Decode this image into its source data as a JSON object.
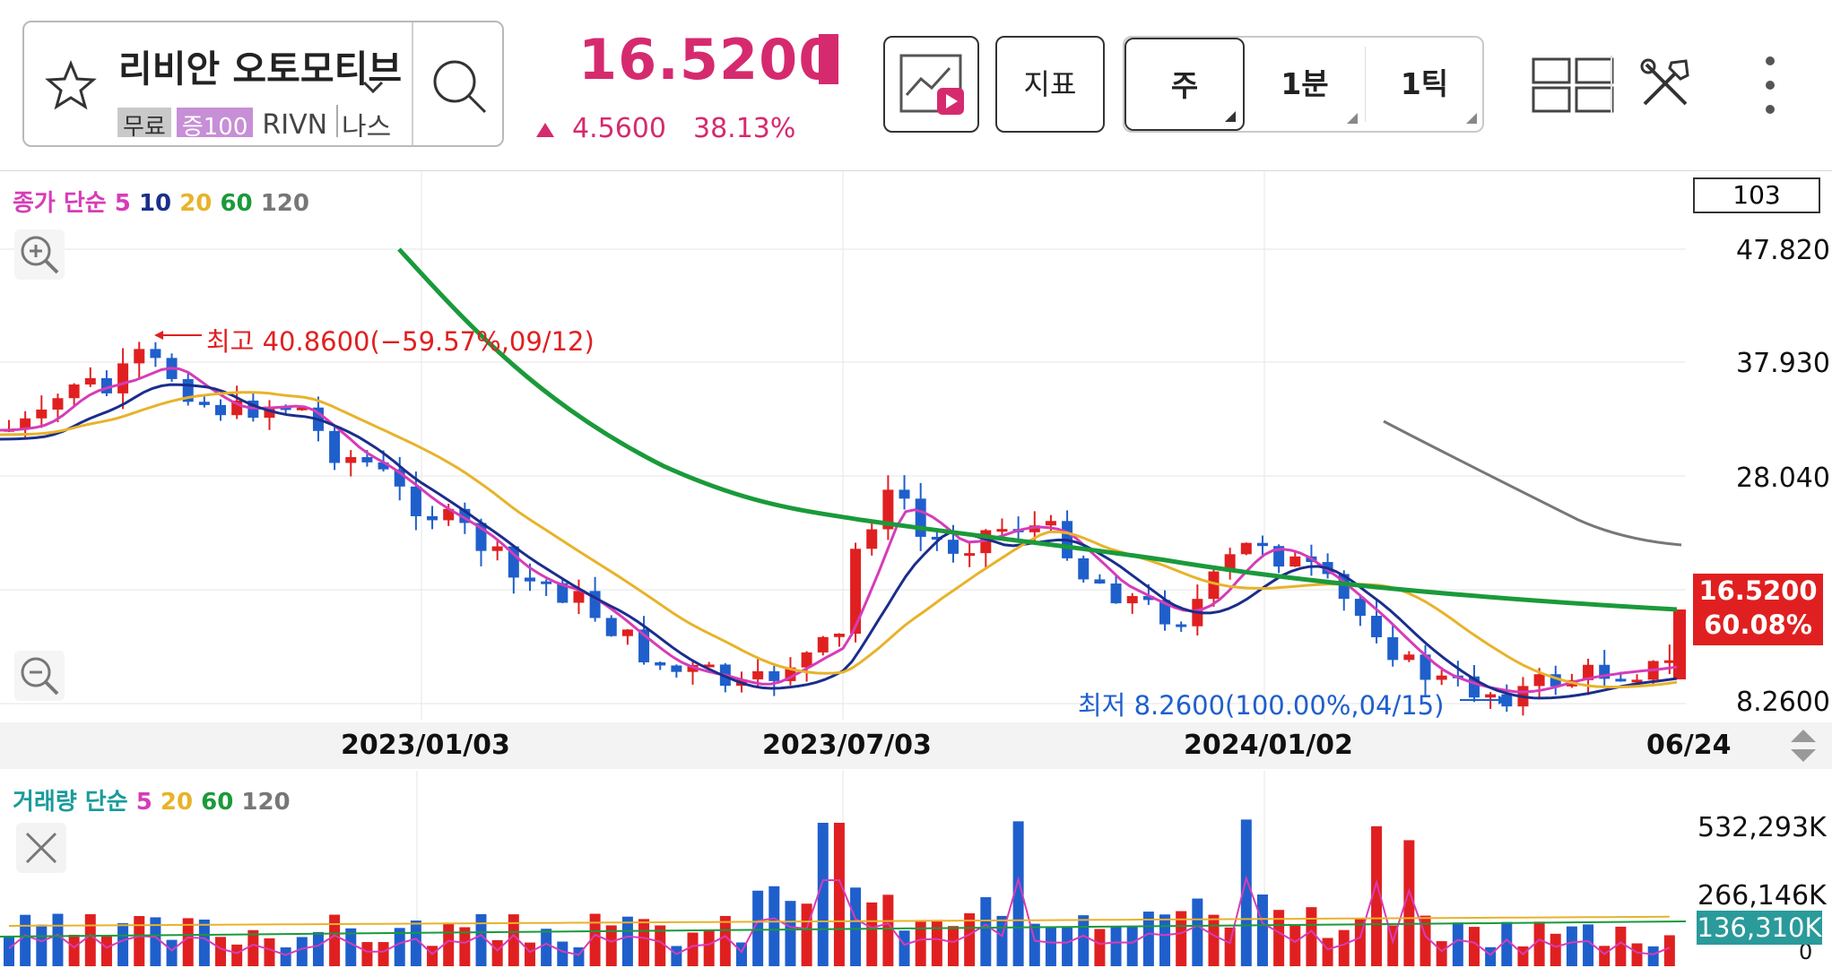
{
  "stock": {
    "name": "리비안 오토모티브",
    "tags": {
      "free": "무료",
      "margin": "증100",
      "ticker": "RIVN",
      "market": "나스"
    },
    "price": "16.5200",
    "change": "4.5600",
    "change_pct": "38.13%"
  },
  "toolbar": {
    "indicator_label": "지표",
    "periods": [
      {
        "label": "주",
        "selected": true
      },
      {
        "label": "1분",
        "selected": false
      },
      {
        "label": "1틱",
        "selected": false
      }
    ],
    "icons": {
      "chart_type": "chart-video-icon",
      "layout": "grid-layout-icon",
      "tools": "tools-icon",
      "menu": "more-vertical-icon"
    }
  },
  "chart": {
    "ma_legend": {
      "prefix": "종가 단순",
      "periods": [
        "5",
        "10",
        "20",
        "60",
        "120"
      ],
      "colors": [
        "#d63cb8",
        "#1a2e8c",
        "#e8b32a",
        "#1a9a3a",
        "#777777"
      ]
    },
    "candle_count": "103",
    "y_ticks": [
      "47.8205",
      "37.9303",
      "28.0402",
      "8.2600"
    ],
    "last_price": "16.5200",
    "last_pct": "60.08%",
    "high_annotation": "최고 40.8600(−59.57%,09/12)",
    "low_annotation": "최저 8.2600(100.00%,04/15)",
    "dates": [
      "2023/01/03",
      "2023/07/03",
      "2024/01/02",
      "06/24"
    ],
    "up_color": "#e02020",
    "down_color": "#1f5fcc"
  },
  "volume": {
    "legend": {
      "prefix": "거래량 단순",
      "periods": [
        "5",
        "20",
        "60",
        "120"
      ]
    },
    "y_ticks": [
      "532,293K",
      "266,146K",
      "0"
    ],
    "last_volume": "136,310K"
  }
}
